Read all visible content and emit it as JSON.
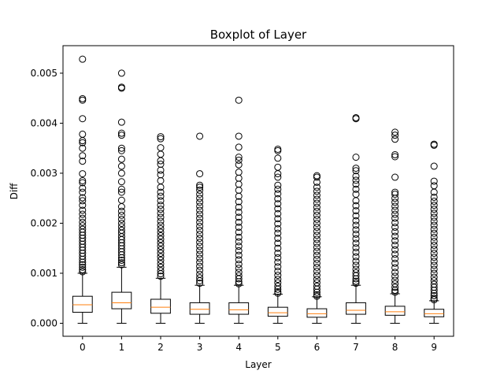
{
  "chart_data": {
    "type": "boxplot",
    "title": "Boxplot of Layer",
    "xlabel": "Layer",
    "ylabel": "Diff",
    "categories": [
      "0",
      "1",
      "2",
      "3",
      "4",
      "5",
      "6",
      "7",
      "8",
      "9"
    ],
    "ylim": [
      -0.00026,
      0.00555
    ],
    "yticks": [
      0.0,
      0.001,
      0.002,
      0.003,
      0.004,
      0.005
    ],
    "ytick_labels": [
      "0.000",
      "0.001",
      "0.002",
      "0.003",
      "0.004",
      "0.005"
    ],
    "grid": false,
    "colors": {
      "box": "#000000",
      "median": "#ff7f0e",
      "flier": "#000000"
    },
    "boxes": [
      {
        "category": "0",
        "min": 0.0,
        "q1": 0.00022,
        "median": 0.00037,
        "q3": 0.00054,
        "max": 0.001,
        "fliers": [
          0.00528,
          0.00449,
          0.00446,
          0.00409,
          0.00378,
          0.00365,
          0.00361,
          0.0035,
          0.00335,
          0.00324,
          0.00299,
          0.00285,
          0.00281,
          0.0027,
          0.00262,
          0.00251,
          0.00245,
          0.00236,
          0.00226,
          0.00218,
          0.0021,
          0.00202,
          0.00195,
          0.00188,
          0.00182,
          0.00176,
          0.0017,
          0.00164,
          0.00158,
          0.00152,
          0.00146,
          0.0014,
          0.00134,
          0.00128,
          0.00122,
          0.00117,
          0.00112,
          0.00107,
          0.00103
        ]
      },
      {
        "category": "1",
        "min": 0.0,
        "q1": 0.00029,
        "median": 0.00041,
        "q3": 0.00062,
        "max": 0.00112,
        "fliers": [
          0.005,
          0.00472,
          0.0047,
          0.00402,
          0.0038,
          0.00376,
          0.0035,
          0.00345,
          0.00328,
          0.00314,
          0.003,
          0.00283,
          0.00268,
          0.00262,
          0.00246,
          0.00233,
          0.00224,
          0.00216,
          0.00208,
          0.002,
          0.00193,
          0.00186,
          0.0018,
          0.00173,
          0.00167,
          0.00161,
          0.00155,
          0.00149,
          0.00143,
          0.00137,
          0.00131,
          0.00126,
          0.00121,
          0.00117
        ]
      },
      {
        "category": "2",
        "min": 0.0,
        "q1": 0.0002,
        "median": 0.00032,
        "q3": 0.00048,
        "max": 0.0009,
        "fliers": [
          0.00373,
          0.00369,
          0.00351,
          0.00338,
          0.00325,
          0.00318,
          0.00306,
          0.00297,
          0.00285,
          0.00272,
          0.00262,
          0.00254,
          0.00245,
          0.00236,
          0.00228,
          0.0022,
          0.00212,
          0.00204,
          0.00196,
          0.00189,
          0.00182,
          0.00175,
          0.00168,
          0.00161,
          0.00154,
          0.00147,
          0.0014,
          0.00133,
          0.00126,
          0.00119,
          0.00112,
          0.00105,
          0.00099,
          0.00094
        ]
      },
      {
        "category": "3",
        "min": 0.0,
        "q1": 0.00018,
        "median": 0.00028,
        "q3": 0.00041,
        "max": 0.00076,
        "fliers": [
          0.00374,
          0.00299,
          0.00276,
          0.00272,
          0.00266,
          0.00258,
          0.0025,
          0.00242,
          0.00234,
          0.00226,
          0.00218,
          0.0021,
          0.00202,
          0.00194,
          0.00186,
          0.00178,
          0.0017,
          0.00162,
          0.00154,
          0.00146,
          0.00138,
          0.0013,
          0.00122,
          0.00114,
          0.00106,
          0.00098,
          0.00091,
          0.00085,
          0.0008
        ]
      },
      {
        "category": "4",
        "min": 0.0,
        "q1": 0.00018,
        "median": 0.00027,
        "q3": 0.00041,
        "max": 0.00076,
        "fliers": [
          0.00446,
          0.00374,
          0.00352,
          0.00332,
          0.00326,
          0.00317,
          0.00302,
          0.0029,
          0.00278,
          0.00266,
          0.00254,
          0.00243,
          0.00232,
          0.00222,
          0.00212,
          0.00202,
          0.00192,
          0.00182,
          0.00172,
          0.00163,
          0.00154,
          0.00145,
          0.00136,
          0.00127,
          0.00118,
          0.0011,
          0.00102,
          0.00095,
          0.00089,
          0.00083,
          0.00079
        ]
      },
      {
        "category": "5",
        "min": 0.0,
        "q1": 0.00014,
        "median": 0.00021,
        "q3": 0.00032,
        "max": 0.00058,
        "fliers": [
          0.00348,
          0.00345,
          0.0033,
          0.00312,
          0.00299,
          0.00292,
          0.00276,
          0.00268,
          0.00259,
          0.00249,
          0.00239,
          0.00229,
          0.00219,
          0.00209,
          0.00199,
          0.00189,
          0.0018,
          0.0017,
          0.0016,
          0.0015,
          0.0014,
          0.00131,
          0.00122,
          0.00113,
          0.00104,
          0.00096,
          0.00088,
          0.00081,
          0.00074,
          0.00068,
          0.00063,
          0.0006
        ]
      },
      {
        "category": "6",
        "min": 0.0,
        "q1": 0.00012,
        "median": 0.00019,
        "q3": 0.00029,
        "max": 0.00053,
        "fliers": [
          0.00295,
          0.00292,
          0.00282,
          0.00272,
          0.00264,
          0.00256,
          0.00248,
          0.0024,
          0.00232,
          0.00224,
          0.00216,
          0.00208,
          0.002,
          0.00192,
          0.00184,
          0.00176,
          0.00168,
          0.0016,
          0.00152,
          0.00144,
          0.00136,
          0.00128,
          0.0012,
          0.00112,
          0.00104,
          0.00096,
          0.00088,
          0.00081,
          0.00074,
          0.00068,
          0.00062,
          0.00057,
          0.00054
        ]
      },
      {
        "category": "7",
        "min": 0.0,
        "q1": 0.00018,
        "median": 0.00026,
        "q3": 0.00041,
        "max": 0.00076,
        "fliers": [
          0.00411,
          0.00409,
          0.00332,
          0.0031,
          0.00305,
          0.00294,
          0.00286,
          0.00278,
          0.00268,
          0.00258,
          0.00245,
          0.00235,
          0.00225,
          0.00215,
          0.00205,
          0.00196,
          0.00187,
          0.00178,
          0.00169,
          0.0016,
          0.00151,
          0.00142,
          0.00133,
          0.00124,
          0.00116,
          0.00108,
          0.00101,
          0.00095,
          0.00089,
          0.00084,
          0.0008
        ]
      },
      {
        "category": "8",
        "min": 0.0,
        "q1": 0.00016,
        "median": 0.00023,
        "q3": 0.00034,
        "max": 0.00059,
        "fliers": [
          0.00382,
          0.00376,
          0.00368,
          0.00337,
          0.00333,
          0.00292,
          0.00262,
          0.00258,
          0.0025,
          0.00242,
          0.00234,
          0.00226,
          0.00218,
          0.0021,
          0.00201,
          0.00192,
          0.00183,
          0.00174,
          0.00165,
          0.00156,
          0.00147,
          0.00138,
          0.00129,
          0.0012,
          0.00111,
          0.00102,
          0.00094,
          0.00086,
          0.00079,
          0.00072,
          0.00066,
          0.00062
        ]
      },
      {
        "category": "9",
        "min": 0.0,
        "q1": 0.00013,
        "median": 0.00019,
        "q3": 0.00028,
        "max": 0.00045,
        "fliers": [
          0.00358,
          0.00356,
          0.00314,
          0.00284,
          0.00275,
          0.00262,
          0.00252,
          0.00244,
          0.00236,
          0.00228,
          0.0022,
          0.00212,
          0.00204,
          0.00196,
          0.00188,
          0.0018,
          0.00172,
          0.00164,
          0.00156,
          0.00148,
          0.0014,
          0.00132,
          0.00124,
          0.00116,
          0.00108,
          0.001,
          0.00092,
          0.00085,
          0.00078,
          0.00072,
          0.00066,
          0.0006,
          0.00055,
          0.0005,
          0.00047
        ]
      }
    ]
  }
}
